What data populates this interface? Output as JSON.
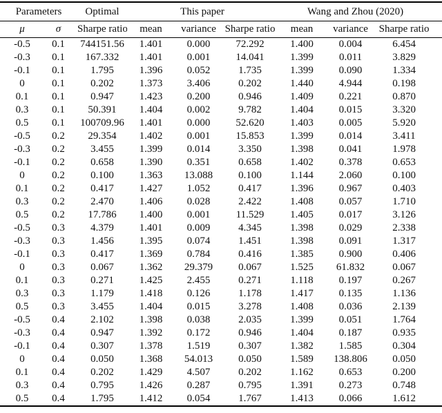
{
  "colors": {
    "background": "#ffffff",
    "text": "#111111",
    "rule": "#000000"
  },
  "table": {
    "groups": [
      {
        "label": "Parameters",
        "span": 2
      },
      {
        "label": "Optimal",
        "span": 1
      },
      {
        "label": "This paper",
        "span": 3
      },
      {
        "label": "Wang and Zhou (2020)",
        "span": 3
      }
    ],
    "columns": [
      "μ",
      "σ",
      "Sharpe ratio",
      "mean",
      "variance",
      "Sharpe ratio",
      "mean",
      "variance",
      "Sharpe ratio"
    ],
    "bold_column_index": 5,
    "rows": [
      [
        "-0.5",
        "0.1",
        "744151.56",
        "1.401",
        "0.000",
        "72.292",
        "1.400",
        "0.004",
        "6.454"
      ],
      [
        "-0.3",
        "0.1",
        "167.332",
        "1.401",
        "0.001",
        "14.041",
        "1.399",
        "0.011",
        "3.829"
      ],
      [
        "-0.1",
        "0.1",
        "1.795",
        "1.396",
        "0.052",
        "1.735",
        "1.399",
        "0.090",
        "1.334"
      ],
      [
        "0",
        "0.1",
        "0.202",
        "1.373",
        "3.406",
        "0.202",
        "1.440",
        "4.944",
        "0.198"
      ],
      [
        "0.1",
        "0.1",
        "0.947",
        "1.423",
        "0.200",
        "0.946",
        "1.409",
        "0.221",
        "0.870"
      ],
      [
        "0.3",
        "0.1",
        "50.391",
        "1.404",
        "0.002",
        "9.782",
        "1.404",
        "0.015",
        "3.320"
      ],
      [
        "0.5",
        "0.1",
        "100709.96",
        "1.401",
        "0.000",
        "52.620",
        "1.403",
        "0.005",
        "5.920"
      ],
      [
        "-0.5",
        "0.2",
        "29.354",
        "1.402",
        "0.001",
        "15.853",
        "1.399",
        "0.014",
        "3.411"
      ],
      [
        "-0.3",
        "0.2",
        "3.455",
        "1.399",
        "0.014",
        "3.350",
        "1.398",
        "0.041",
        "1.978"
      ],
      [
        "-0.1",
        "0.2",
        "0.658",
        "1.390",
        "0.351",
        "0.658",
        "1.402",
        "0.378",
        "0.653"
      ],
      [
        "0",
        "0.2",
        "0.100",
        "1.363",
        "13.088",
        "0.100",
        "1.144",
        "2.060",
        "0.100"
      ],
      [
        "0.1",
        "0.2",
        "0.417",
        "1.427",
        "1.052",
        "0.417",
        "1.396",
        "0.967",
        "0.403"
      ],
      [
        "0.3",
        "0.2",
        "2.470",
        "1.406",
        "0.028",
        "2.422",
        "1.408",
        "0.057",
        "1.710"
      ],
      [
        "0.5",
        "0.2",
        "17.786",
        "1.400",
        "0.001",
        "11.529",
        "1.405",
        "0.017",
        "3.126"
      ],
      [
        "-0.5",
        "0.3",
        "4.379",
        "1.401",
        "0.009",
        "4.345",
        "1.398",
        "0.029",
        "2.338"
      ],
      [
        "-0.3",
        "0.3",
        "1.456",
        "1.395",
        "0.074",
        "1.451",
        "1.398",
        "0.091",
        "1.317"
      ],
      [
        "-0.1",
        "0.3",
        "0.417",
        "1.369",
        "0.784",
        "0.416",
        "1.385",
        "0.900",
        "0.406"
      ],
      [
        "0",
        "0.3",
        "0.067",
        "1.362",
        "29.379",
        "0.067",
        "1.525",
        "61.832",
        "0.067"
      ],
      [
        "0.1",
        "0.3",
        "0.271",
        "1.425",
        "2.455",
        "0.271",
        "1.118",
        "0.197",
        "0.267"
      ],
      [
        "0.3",
        "0.3",
        "1.179",
        "1.418",
        "0.126",
        "1.178",
        "1.417",
        "0.135",
        "1.136"
      ],
      [
        "0.5",
        "0.3",
        "3.455",
        "1.404",
        "0.015",
        "3.278",
        "1.408",
        "0.036",
        "2.139"
      ],
      [
        "-0.5",
        "0.4",
        "2.102",
        "1.398",
        "0.038",
        "2.035",
        "1.399",
        "0.051",
        "1.764"
      ],
      [
        "-0.3",
        "0.4",
        "0.947",
        "1.392",
        "0.172",
        "0.946",
        "1.404",
        "0.187",
        "0.935"
      ],
      [
        "-0.1",
        "0.4",
        "0.307",
        "1.378",
        "1.519",
        "0.307",
        "1.382",
        "1.585",
        "0.304"
      ],
      [
        "0",
        "0.4",
        "0.050",
        "1.368",
        "54.013",
        "0.050",
        "1.589",
        "138.806",
        "0.050"
      ],
      [
        "0.1",
        "0.4",
        "0.202",
        "1.429",
        "4.507",
        "0.202",
        "1.162",
        "0.653",
        "0.200"
      ],
      [
        "0.3",
        "0.4",
        "0.795",
        "1.426",
        "0.287",
        "0.795",
        "1.391",
        "0.273",
        "0.748"
      ],
      [
        "0.5",
        "0.4",
        "1.795",
        "1.412",
        "0.054",
        "1.767",
        "1.413",
        "0.066",
        "1.612"
      ]
    ]
  }
}
